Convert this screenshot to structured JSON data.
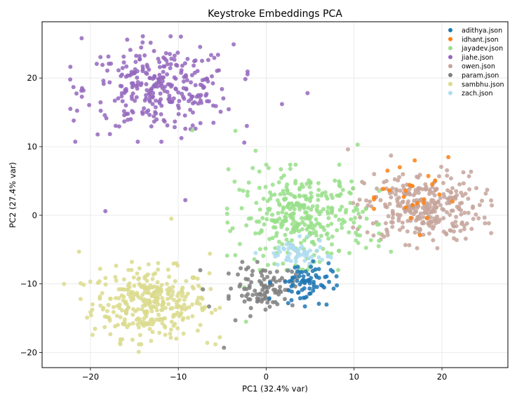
{
  "chart_data": {
    "type": "scatter",
    "title": "Keystroke Embeddings PCA",
    "xlabel": "PC1 (32.4% var)",
    "ylabel": "PC2 (27.4% var)",
    "xlim": [
      -25.5,
      27.5
    ],
    "ylim": [
      -22.2,
      28.2
    ],
    "xticks": [
      -20,
      -10,
      0,
      10,
      20
    ],
    "yticks": [
      -20,
      -10,
      0,
      10,
      20
    ],
    "xtick_labels": [
      "−20",
      "−10",
      "0",
      "10",
      "20"
    ],
    "ytick_labels": [
      "−20",
      "−10",
      "0",
      "10",
      "20"
    ],
    "grid": true,
    "legend_position": "top-right",
    "series": [
      {
        "name": "adithya.json",
        "color": "#1f77b4",
        "count": 70,
        "clusters": [
          {
            "cx": 4.2,
            "cy": -9.8,
            "sx": 1.6,
            "sy": 1.5
          }
        ],
        "points": [
          [
            8.0,
            -8.9
          ],
          [
            7.1,
            -7.0
          ],
          [
            2.5,
            -12.8
          ],
          [
            6.0,
            -12.9
          ],
          [
            6.7,
            -9.0
          ]
        ]
      },
      {
        "name": "idhant.json",
        "color": "#ff7f0e",
        "count": 20,
        "clusters": [
          {
            "cx": 17.3,
            "cy": 2.5,
            "sx": 2.1,
            "sy": 2.6
          }
        ],
        "points": [
          [
            13.8,
            6.5
          ],
          [
            15.2,
            7.0
          ],
          [
            16.9,
            8.0
          ],
          [
            21.2,
            2.0
          ],
          [
            18.3,
            -0.4
          ],
          [
            17.5,
            -2.9
          ]
        ]
      },
      {
        "name": "jayadev.json",
        "color": "#98df8a",
        "count": 330,
        "clusters": [
          {
            "cx": 4.2,
            "cy": -0.3,
            "sx": 3.6,
            "sy": 3.2
          }
        ],
        "points": [
          [
            -4.3,
            6.7
          ],
          [
            -3.6,
            4.9
          ],
          [
            -4.1,
            -2.3
          ],
          [
            -1.2,
            9.4
          ],
          [
            -3.5,
            12.3
          ],
          [
            -8.4,
            12.4
          ],
          [
            -2.5,
            -10.5
          ],
          [
            -2.3,
            -15.5
          ],
          [
            12.8,
            -4.5
          ],
          [
            14.2,
            -5.3
          ],
          [
            10.4,
            10.3
          ]
        ]
      },
      {
        "name": "jiahe.json",
        "color": "#9467bd",
        "count": 300,
        "clusters": [
          {
            "cx": -12.2,
            "cy": 18.4,
            "sx": 4.2,
            "sy": 3.2
          }
        ],
        "points": [
          [
            -21.0,
            25.8
          ],
          [
            -22.3,
            19.8
          ],
          [
            -21.9,
            13.8
          ],
          [
            4.7,
            17.8
          ],
          [
            -18.3,
            0.6
          ],
          [
            -9.2,
            2.2
          ],
          [
            1.8,
            16.2
          ],
          [
            -2.5,
            10.6
          ]
        ]
      },
      {
        "name": "owen.json",
        "color": "#c5a49b",
        "count": 310,
        "clusters": [
          {
            "cx": 17.8,
            "cy": 1.2,
            "sx": 3.3,
            "sy": 2.5
          }
        ],
        "points": [
          [
            25.6,
            -2.6
          ],
          [
            9.3,
            9.6
          ],
          [
            14.2,
            8.7
          ],
          [
            13.4,
            -3.1
          ],
          [
            24.3,
            1.5
          ]
        ]
      },
      {
        "name": "param.json",
        "color": "#7f7f7f",
        "count": 100,
        "clusters": [
          {
            "cx": -0.2,
            "cy": -10.4,
            "sx": 1.7,
            "sy": 1.5
          }
        ],
        "points": [
          [
            -4.8,
            -19.3
          ],
          [
            -6.5,
            -13.3
          ],
          [
            -7.2,
            -10.8
          ],
          [
            -3.5,
            -15.3
          ],
          [
            -7.5,
            -8.0
          ],
          [
            -1.8,
            -14.7
          ]
        ]
      },
      {
        "name": "sambhu.json",
        "color": "#dbdb8d",
        "count": 330,
        "clusters": [
          {
            "cx": -13.2,
            "cy": -12.8,
            "sx": 3.3,
            "sy": 2.5
          }
        ],
        "points": [
          [
            -23.0,
            -10.0
          ],
          [
            -21.3,
            -5.3
          ],
          [
            -18.9,
            -7.8
          ],
          [
            -10.8,
            -0.5
          ],
          [
            -6.4,
            -5.6
          ],
          [
            -6.7,
            -18.6
          ],
          [
            -14.5,
            -19.9
          ],
          [
            -7.3,
            -13.5
          ]
        ]
      },
      {
        "name": "zach.json",
        "color": "#aedcf0",
        "count": 60,
        "clusters": [
          {
            "cx": 3.3,
            "cy": -5.7,
            "sx": 1.7,
            "sy": 1.1
          }
        ],
        "points": [
          [
            -1.2,
            -5.5
          ],
          [
            7.0,
            -6.0
          ],
          [
            2.5,
            -8.0
          ]
        ]
      }
    ]
  }
}
